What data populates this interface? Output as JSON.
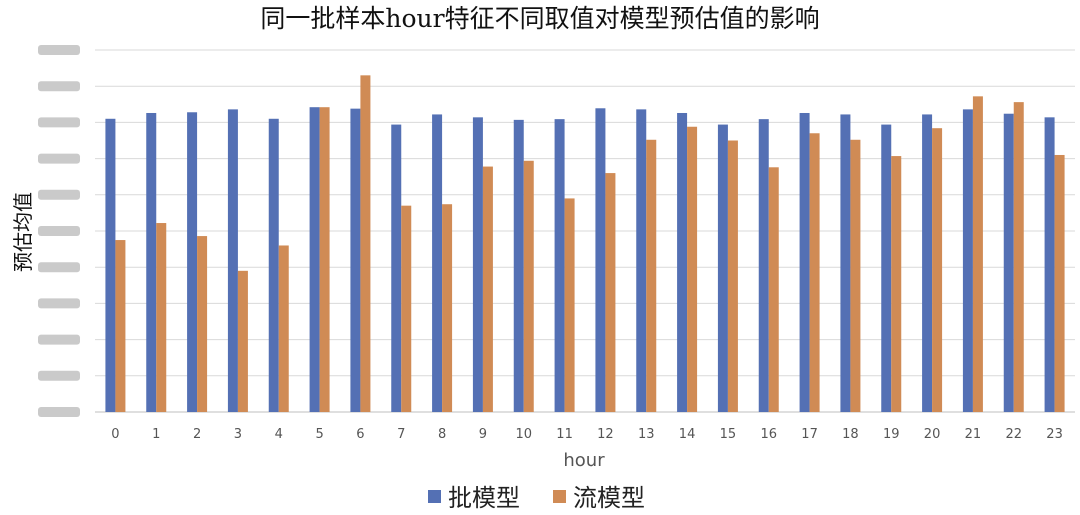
{
  "chart_data": {
    "type": "bar",
    "title": "同一批样本hour特征不同取值对模型预估值的影响",
    "xlabel": "hour",
    "ylabel": "预估均值",
    "categories": [
      "0",
      "1",
      "2",
      "3",
      "4",
      "5",
      "6",
      "7",
      "8",
      "9",
      "10",
      "11",
      "12",
      "13",
      "14",
      "15",
      "16",
      "17",
      "18",
      "19",
      "20",
      "21",
      "22",
      "23"
    ],
    "series": [
      {
        "name": "批模型",
        "color": "#5470b4",
        "values": [
          8.1,
          8.26,
          8.28,
          8.36,
          8.1,
          8.42,
          8.38,
          7.94,
          8.22,
          8.14,
          8.07,
          8.09,
          8.39,
          8.36,
          8.26,
          7.94,
          8.09,
          8.26,
          8.22,
          7.94,
          8.22,
          8.36,
          8.24,
          8.14
        ]
      },
      {
        "name": "流模型",
        "color": "#d08b55",
        "values": [
          4.75,
          5.22,
          4.86,
          3.9,
          4.6,
          8.42,
          9.3,
          5.7,
          5.74,
          6.78,
          6.94,
          5.9,
          6.6,
          7.52,
          7.88,
          7.5,
          6.76,
          7.7,
          7.52,
          7.07,
          7.84,
          8.72,
          8.56,
          7.1
        ]
      }
    ],
    "ylim": [
      0,
      10
    ],
    "yticks_visible": false,
    "grid": true,
    "legend_position": "bottom"
  }
}
